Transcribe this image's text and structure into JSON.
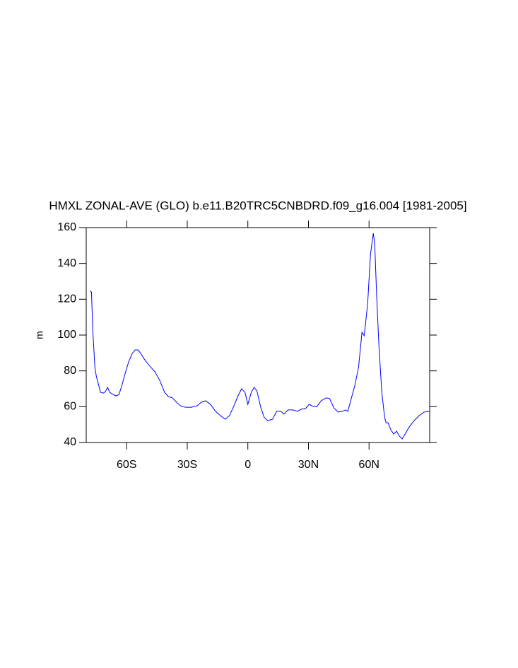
{
  "chart_data": {
    "type": "line",
    "title": "HMXL ZONAL-AVE (GLO) b.e11.B20TRC5CNBDRD.f09_g16.004 [1981-2005]",
    "y_label": "m",
    "x": [
      -78.1,
      -77.4,
      -76.7,
      -75.7,
      -75,
      -73.6,
      -72.9,
      -71.5,
      -70.5,
      -69.4,
      -68.4,
      -67,
      -65.2,
      -63.8,
      -62.4,
      -60.7,
      -59,
      -57.2,
      -55.8,
      -54.4,
      -53,
      -51.3,
      -48.8,
      -46,
      -43.6,
      -41.2,
      -39.4,
      -37.3,
      -34.9,
      -32.8,
      -30.7,
      -27.9,
      -25.1,
      -23,
      -20.9,
      -18.5,
      -16,
      -13.6,
      -11.2,
      -9.1,
      -7,
      -4.9,
      -3.1,
      -1.4,
      0,
      1.7,
      3.1,
      4.5,
      6.3,
      8,
      9.8,
      12.2,
      14.3,
      16.4,
      17.8,
      19.9,
      22.3,
      24.4,
      26.5,
      28.6,
      30.3,
      32.4,
      34.2,
      36.3,
      38.7,
      40.5,
      42.6,
      44.7,
      46.7,
      48.5,
      49.5,
      50.9,
      53,
      54.8,
      56.5,
      57.6,
      59.3,
      60.7,
      62.1,
      62.8,
      63.8,
      64.9,
      66.3,
      67.7,
      68.4,
      69.4,
      70.8,
      72.2,
      73.6,
      75,
      76.4,
      77.8,
      79.9,
      82.3,
      84.8,
      87.2,
      90
    ],
    "series": [
      {
        "color": "#0000ff",
        "values": [
          124.5,
          124,
          101.6,
          82,
          77,
          71,
          68,
          67.6,
          68.4,
          70.8,
          68,
          67,
          66,
          66.8,
          71.6,
          78.7,
          85,
          89.7,
          91.7,
          91.7,
          89.7,
          86.6,
          83,
          79.5,
          74.7,
          68,
          65.7,
          64.9,
          62,
          60.1,
          59.7,
          59.7,
          60.5,
          62.5,
          63.3,
          61.3,
          57.4,
          55,
          53,
          55,
          60.1,
          66,
          70,
          68,
          61.3,
          68,
          70.8,
          68.8,
          60,
          54.2,
          52.2,
          53,
          57.4,
          57.4,
          55.8,
          58.2,
          58.2,
          57.4,
          58.6,
          59,
          61.3,
          60.1,
          60.1,
          63.3,
          64.9,
          64.5,
          59.3,
          57,
          57.4,
          58.2,
          57.4,
          63.3,
          72,
          82,
          101.6,
          99.6,
          117.4,
          145,
          156.8,
          151,
          121,
          93.7,
          68,
          54.2,
          51,
          51,
          47.1,
          44.7,
          46.3,
          43.6,
          42,
          44.7,
          48.7,
          52.2,
          55,
          57,
          57.4
        ]
      }
    ],
    "xlim": [
      -80,
      90
    ],
    "ylim": [
      40,
      160
    ],
    "xticks": [
      {
        "value": -60,
        "label": "60S"
      },
      {
        "value": -30,
        "label": "30S"
      },
      0,
      {
        "value": 30,
        "label": "30N"
      },
      {
        "value": 60,
        "label": "60N"
      }
    ],
    "yticks": [
      40,
      60,
      80,
      100,
      120,
      140,
      160
    ]
  }
}
